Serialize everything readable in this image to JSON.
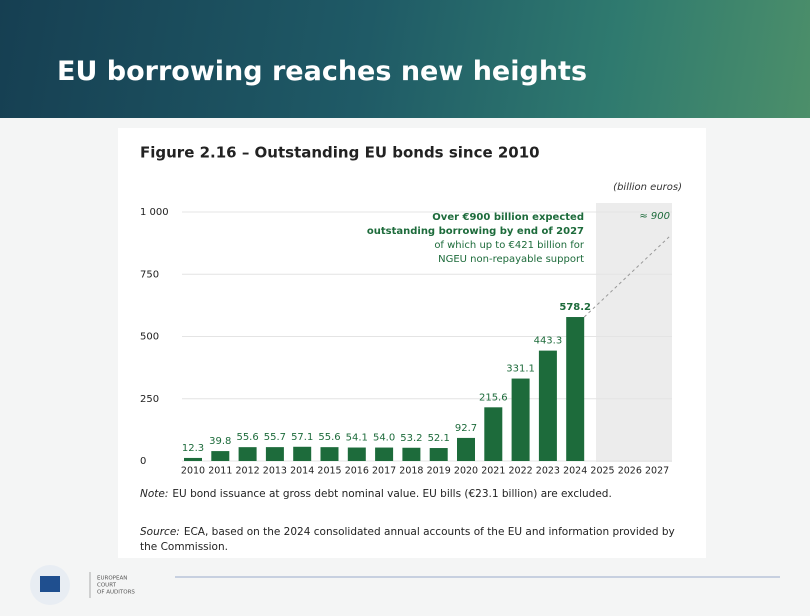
{
  "slide": {
    "title": "EU borrowing reaches new heights",
    "logo_lines": [
      "EUROPEAN",
      "COURT",
      "OF AUDITORS"
    ]
  },
  "chart_data": {
    "type": "bar",
    "title": "Figure 2.16 – Outstanding EU bonds since 2010",
    "unit": "(billion euros)",
    "categories": [
      "2010",
      "2011",
      "2012",
      "2013",
      "2014",
      "2015",
      "2016",
      "2017",
      "2018",
      "2019",
      "2020",
      "2021",
      "2022",
      "2023",
      "2024",
      "2025",
      "2026",
      "2027"
    ],
    "values": [
      12.3,
      39.8,
      55.6,
      55.7,
      57.1,
      55.6,
      54.1,
      54.0,
      53.2,
      52.1,
      92.7,
      215.6,
      331.1,
      443.3,
      578.2,
      null,
      null,
      null
    ],
    "value_labels": [
      "12.3",
      "39.8",
      "55.6",
      "55.7",
      "57.1",
      "55.6",
      "54.1",
      "54.0",
      "53.2",
      "52.1",
      "92.7",
      "215.6",
      "331.1",
      "443.3",
      "578.2",
      null,
      null,
      null
    ],
    "color": "#1d6b3b",
    "ylim": [
      0,
      1000
    ],
    "yticks": [
      0,
      250,
      500,
      750,
      {
        "value": 1000,
        "label": "1 000"
      }
    ],
    "grid": true,
    "projection": {
      "value": 900,
      "label": "≈ 900"
    },
    "annotation_lines": [
      "Over €900 billion expected",
      "outstanding borrowing by end of 2027",
      "of which up to €421 billion for",
      "NGEU non-repayable support"
    ],
    "note_label": "Note:",
    "note": "EU bond issuance at gross debt nominal value. EU bills (€23.1 billion) are excluded.",
    "source_label": "Source:",
    "source_lines": [
      "ECA, based on the 2024 consolidated annual accounts of the EU and information provided by",
      "the Commission."
    ]
  }
}
